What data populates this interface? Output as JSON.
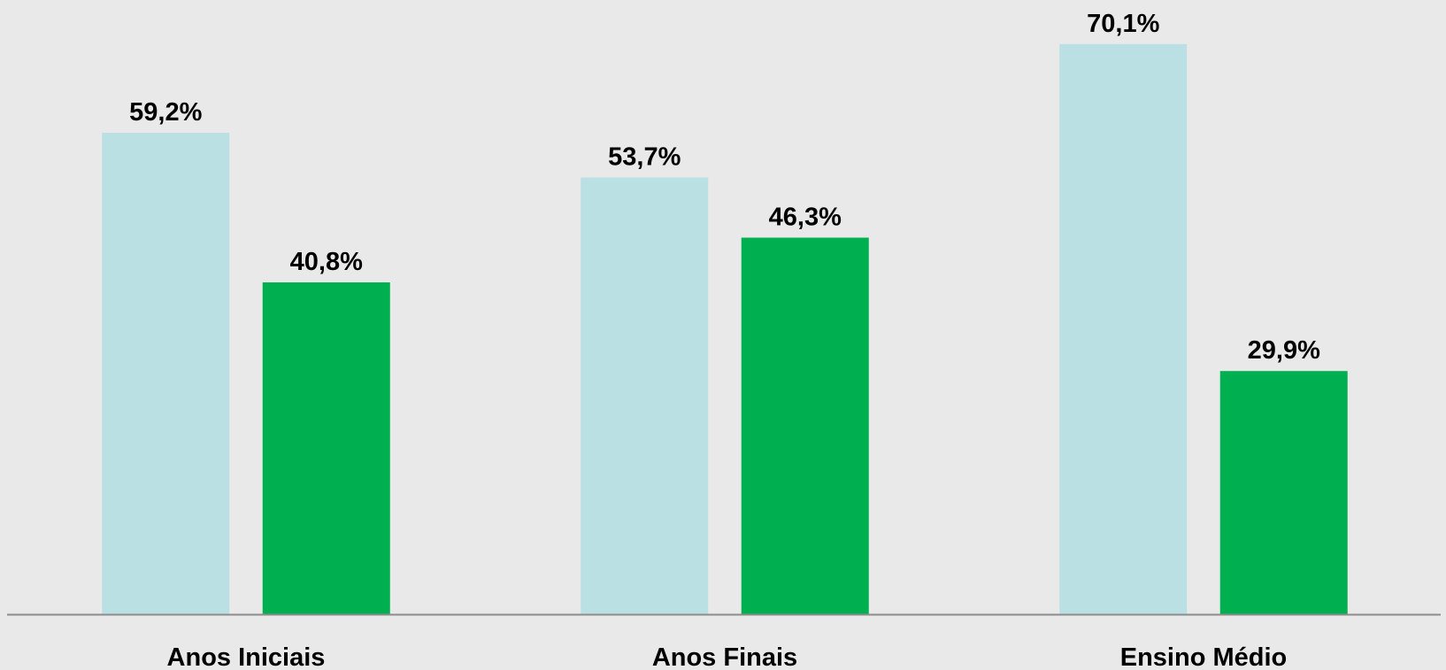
{
  "chart_data": {
    "type": "bar",
    "categories": [
      "Anos Iniciais",
      "Anos Finais",
      "Ensino Médio"
    ],
    "series": [
      {
        "color": "#bae0e3",
        "values": [
          59.2,
          53.7,
          70.1
        ],
        "value_labels": [
          "59,2%",
          "53,7%",
          "70,1%"
        ]
      },
      {
        "color": "#00af50",
        "values": [
          40.8,
          46.3,
          29.9
        ],
        "value_labels": [
          "40,8%",
          "46,3%",
          "29,9%"
        ]
      }
    ]
  }
}
